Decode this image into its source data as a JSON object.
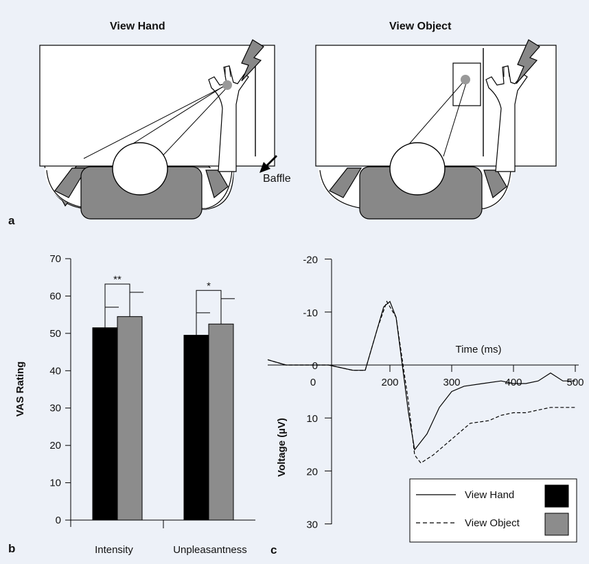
{
  "panel_a": {
    "letter": "a",
    "left_title": "View Hand",
    "right_title": "View Object",
    "baffle_label": "Baffle"
  },
  "panel_b": {
    "letter": "b"
  },
  "panel_c": {
    "letter": "c"
  },
  "chart_data": [
    {
      "type": "bar",
      "ylabel": "VAS Rating",
      "xlabel": "",
      "ylim": [
        0,
        70
      ],
      "yticks": [
        "0",
        "10",
        "20",
        "30",
        "40",
        "50",
        "60",
        "70"
      ],
      "categories": [
        "Intensity",
        "Unpleasantness"
      ],
      "series": [
        {
          "name": "View Hand",
          "color": "#000000",
          "values": [
            51.5,
            49.5
          ],
          "errors": [
            5.5,
            6
          ]
        },
        {
          "name": "View Object",
          "color": "#8c8c8c",
          "values": [
            54.5,
            52.5
          ],
          "errors": [
            6.5,
            6.8
          ]
        }
      ],
      "significance": [
        "**",
        "*"
      ]
    },
    {
      "type": "line",
      "xlabel": "Time (ms)",
      "ylabel": "Voltage (µV)",
      "xlim": [
        0,
        500
      ],
      "ylim": [
        -20,
        30
      ],
      "y_inverted": true,
      "xticks": [
        "0",
        "200",
        "300",
        "400",
        "500"
      ],
      "yticks": [
        "-20",
        "-10",
        "0",
        "10",
        "20",
        "30"
      ],
      "legend": {
        "placement": "bottom-right"
      },
      "series": [
        {
          "name": "View Hand",
          "style": "solid",
          "x": [
            0,
            30,
            60,
            100,
            140,
            150,
            160,
            190,
            200,
            210,
            230,
            240,
            260,
            280,
            300,
            320,
            350,
            380,
            400,
            420,
            440,
            460,
            480,
            500
          ],
          "y": [
            -1,
            0,
            0,
            0,
            1,
            1,
            1,
            -11,
            -12,
            -9,
            9,
            16,
            13,
            8,
            5,
            4,
            3.5,
            3,
            3.5,
            3.5,
            3,
            1.5,
            3,
            3
          ]
        },
        {
          "name": "View Object",
          "style": "dashed",
          "x": [
            0,
            30,
            60,
            100,
            140,
            150,
            160,
            180,
            195,
            210,
            230,
            240,
            250,
            270,
            290,
            310,
            330,
            360,
            380,
            400,
            420,
            440,
            460,
            480,
            500
          ],
          "y": [
            -1,
            0,
            0,
            0,
            1,
            1,
            1,
            -7,
            -12,
            -9,
            7,
            17,
            18.5,
            17,
            15,
            13,
            11,
            10.5,
            9.5,
            9,
            9,
            8.5,
            8,
            8,
            8
          ]
        }
      ]
    }
  ]
}
